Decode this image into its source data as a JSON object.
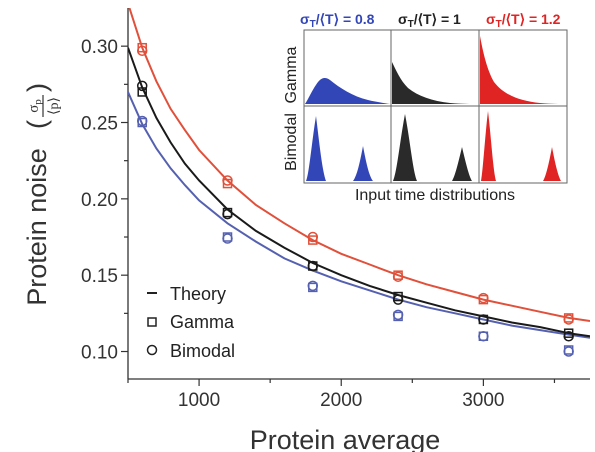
{
  "chart_data": {
    "type": "scatter",
    "xlabel": "Protein average",
    "ylabel": "Protein noise",
    "ylabel_fraction": {
      "numerator": "σ",
      "numerator_sub": "p",
      "denominator": "⟨p⟩"
    },
    "xlim": [
      500,
      3750
    ],
    "ylim": [
      0.082,
      0.325
    ],
    "x_ticks": [
      1000,
      2000,
      3000
    ],
    "x_tick_labels": [
      "1000",
      "2000",
      "3000"
    ],
    "y_ticks": [
      0.1,
      0.15,
      0.2,
      0.25,
      0.3
    ],
    "y_tick_labels": [
      "0.10",
      "0.15",
      "0.20",
      "0.25",
      "0.30"
    ],
    "grid": false,
    "legend_position": "bottom-left",
    "legend": [
      {
        "marker": "line",
        "label": "Theory"
      },
      {
        "marker": "square",
        "label": "Gamma"
      },
      {
        "marker": "circle",
        "label": "Bimodal"
      }
    ],
    "series": [
      {
        "name": "σT/⟨T⟩ = 0.8",
        "color": "#5561b0",
        "theory_x": [
          500,
          600,
          700,
          800,
          900,
          1000,
          1200,
          1400,
          1600,
          1800,
          2000,
          2200,
          2400,
          2600,
          2800,
          3000,
          3200,
          3400,
          3600,
          3750
        ],
        "theory_y": [
          0.27,
          0.249,
          0.233,
          0.22,
          0.209,
          0.199,
          0.184,
          0.172,
          0.161,
          0.153,
          0.146,
          0.14,
          0.134,
          0.129,
          0.125,
          0.121,
          0.117,
          0.114,
          0.111,
          0.109
        ],
        "gamma_x": [
          600,
          1200,
          1800,
          2400,
          3000,
          3600
        ],
        "gamma_y": [
          0.25,
          0.175,
          0.142,
          0.123,
          0.11,
          0.101
        ],
        "bimodal_x": [
          600,
          1200,
          1800,
          2400,
          3000,
          3600
        ],
        "bimodal_y": [
          0.251,
          0.174,
          0.143,
          0.124,
          0.11,
          0.1
        ]
      },
      {
        "name": "σT/⟨T⟩ = 1",
        "color": "#1a1a1a",
        "theory_x": [
          500,
          600,
          700,
          800,
          900,
          1000,
          1200,
          1400,
          1600,
          1800,
          2000,
          2200,
          2400,
          2600,
          2800,
          3000,
          3200,
          3400,
          3600,
          3750
        ],
        "theory_y": [
          0.299,
          0.273,
          0.253,
          0.237,
          0.223,
          0.212,
          0.193,
          0.179,
          0.168,
          0.158,
          0.15,
          0.143,
          0.137,
          0.132,
          0.127,
          0.123,
          0.119,
          0.116,
          0.112,
          0.11
        ],
        "gamma_x": [
          600,
          1200,
          1800,
          2400,
          3000,
          3600
        ],
        "gamma_y": [
          0.27,
          0.191,
          0.156,
          0.136,
          0.121,
          0.112
        ],
        "bimodal_x": [
          600,
          1200,
          1800,
          2400,
          3000,
          3600
        ],
        "bimodal_y": [
          0.274,
          0.19,
          0.156,
          0.134,
          0.121,
          0.11
        ]
      },
      {
        "name": "σT/⟨T⟩ = 1.2",
        "color": "#e0503a",
        "theory_x": [
          500,
          600,
          700,
          800,
          900,
          1000,
          1200,
          1400,
          1600,
          1800,
          2000,
          2200,
          2400,
          2600,
          2800,
          3000,
          3200,
          3400,
          3600,
          3750
        ],
        "theory_y": [
          0.328,
          0.299,
          0.277,
          0.259,
          0.245,
          0.232,
          0.212,
          0.196,
          0.184,
          0.173,
          0.164,
          0.157,
          0.15,
          0.144,
          0.139,
          0.134,
          0.13,
          0.126,
          0.122,
          0.12
        ],
        "gamma_x": [
          600,
          1200,
          1800,
          2400,
          3000,
          3600
        ],
        "gamma_y": [
          0.299,
          0.21,
          0.173,
          0.15,
          0.134,
          0.122
        ],
        "bimodal_x": [
          600,
          1200,
          1800,
          2400,
          3000,
          3600
        ],
        "bimodal_y": [
          0.297,
          0.212,
          0.175,
          0.149,
          0.135,
          0.121
        ]
      }
    ],
    "inset": {
      "title": "Input time distributions",
      "row_labels": [
        "Gamma",
        "Bimodal"
      ],
      "columns": [
        {
          "label_prefix": "σ",
          "label_sub": "T",
          "label_suffix": "/⟨T⟩ = 0.8",
          "color": "#3346b8"
        },
        {
          "label_prefix": "σ",
          "label_sub": "T",
          "label_suffix": "/⟨T⟩ = 1",
          "color": "#222222"
        },
        {
          "label_prefix": "σ",
          "label_sub": "T",
          "label_suffix": "/⟨T⟩ = 1.2",
          "color": "#e02424"
        }
      ]
    }
  }
}
